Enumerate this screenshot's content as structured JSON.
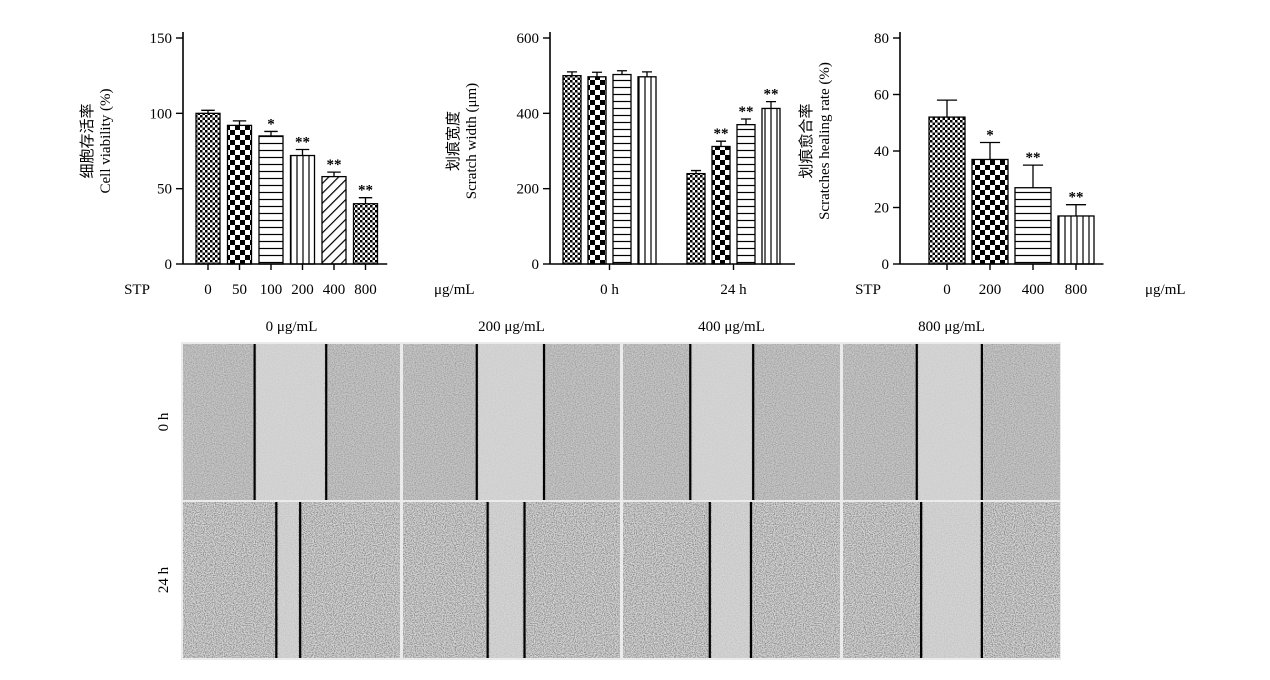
{
  "chart_data": [
    {
      "type": "bar",
      "id": "viability",
      "ylabel_cn": "细胞存活率",
      "ylabel": "Cell viability (%)",
      "ylim": [
        0,
        150
      ],
      "yticks": [
        0,
        50,
        100,
        150
      ],
      "prefix_label": "STP",
      "unit_label": "μg/mL",
      "categories": [
        "0",
        "50",
        "100",
        "200",
        "400",
        "800"
      ],
      "values": [
        100,
        92,
        85,
        72,
        58,
        40
      ],
      "errors": [
        2,
        3,
        3,
        4,
        3,
        4
      ],
      "significance": [
        "",
        "",
        "*",
        "**",
        "**",
        "**"
      ],
      "patterns": [
        "grid",
        "checker",
        "hlines",
        "vlines",
        "diag",
        "grid"
      ]
    },
    {
      "type": "bar",
      "id": "scratch-width",
      "ylabel_cn": "划痕宽度",
      "ylabel": "Scratch width (μm)",
      "ylim": [
        0,
        600
      ],
      "yticks": [
        0,
        200,
        400,
        600
      ],
      "groups": [
        "0 h",
        "24 h"
      ],
      "series": [
        {
          "values": [
            500,
            240
          ],
          "errors": [
            10,
            8
          ],
          "significance": [
            "",
            ""
          ],
          "pattern": "grid"
        },
        {
          "values": [
            497,
            312
          ],
          "errors": [
            12,
            14
          ],
          "significance": [
            "",
            "**"
          ],
          "pattern": "checker"
        },
        {
          "values": [
            503,
            370
          ],
          "errors": [
            10,
            15
          ],
          "significance": [
            "",
            "**"
          ],
          "pattern": "hlines"
        },
        {
          "values": [
            497,
            413
          ],
          "errors": [
            13,
            18
          ],
          "significance": [
            "",
            "**"
          ],
          "pattern": "vlines"
        }
      ]
    },
    {
      "type": "bar",
      "id": "healing-rate",
      "ylabel_cn": "划痕愈合率",
      "ylabel": "Scratches healing rate (%)",
      "ylim": [
        0,
        80
      ],
      "yticks": [
        0,
        20,
        40,
        60,
        80
      ],
      "prefix_label": "STP",
      "unit_label": "μg/mL",
      "categories": [
        "0",
        "200",
        "400",
        "800"
      ],
      "values": [
        52,
        37,
        27,
        17
      ],
      "errors": [
        6,
        6,
        8,
        4
      ],
      "significance": [
        "",
        "*",
        "**",
        "**"
      ],
      "patterns": [
        "grid",
        "checker",
        "hlines",
        "vlines"
      ]
    }
  ],
  "micrographs": {
    "column_labels": [
      "0 μg/mL",
      "200 μg/mL",
      "400 μg/mL",
      "800 μg/mL"
    ],
    "row_labels": [
      "0 h",
      "24 h"
    ],
    "scratch_fractions": [
      [
        [
          0.33,
          0.66
        ],
        [
          0.34,
          0.65
        ],
        [
          0.31,
          0.6
        ],
        [
          0.34,
          0.64
        ]
      ],
      [
        [
          0.43,
          0.54
        ],
        [
          0.39,
          0.56
        ],
        [
          0.4,
          0.59
        ],
        [
          0.36,
          0.64
        ]
      ]
    ],
    "tones": {
      "row0": "#c8c8c8",
      "row1": "#d8d8d8",
      "gap": "#ebebeb",
      "scratch": "#d6d6d6"
    }
  }
}
